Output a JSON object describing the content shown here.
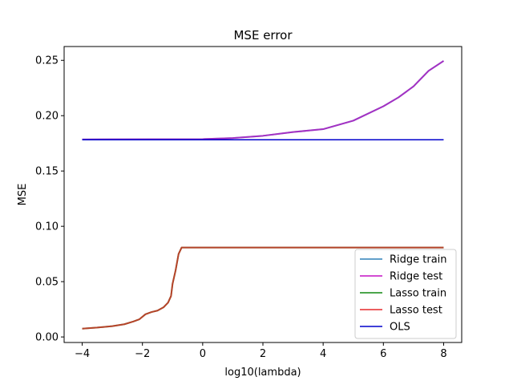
{
  "chart_data": {
    "type": "line",
    "title": "MSE error",
    "xlabel": "log10(lambda)",
    "ylabel": "MSE",
    "xlim": [
      -4.6,
      8.6
    ],
    "ylim": [
      -0.005,
      0.2625
    ],
    "xticks": [
      -4,
      -2,
      0,
      2,
      4,
      6,
      8
    ],
    "xtick_labels": [
      "−4",
      "−2",
      "0",
      "2",
      "4",
      "6",
      "8"
    ],
    "yticks": [
      0.0,
      0.05,
      0.1,
      0.15,
      0.2,
      0.25
    ],
    "ytick_labels": [
      "0.00",
      "0.05",
      "0.10",
      "0.15",
      "0.20",
      "0.25"
    ],
    "grid": false,
    "legend_position": "lower-right",
    "series": [
      {
        "name": "Ridge train",
        "color": "#1f77b4",
        "alpha": 0.7,
        "x": [
          -4,
          0,
          1,
          2,
          3,
          4,
          5,
          6,
          6.5,
          7,
          7.5,
          8
        ],
        "y": [
          0.1785,
          0.1788,
          0.1798,
          0.1818,
          0.1852,
          0.1878,
          0.1955,
          0.2085,
          0.2165,
          0.2265,
          0.2405,
          0.2495
        ]
      },
      {
        "name": "Ridge test",
        "color": "#c000c0",
        "alpha": 0.7,
        "x": [
          -4,
          0,
          1,
          2,
          3,
          4,
          5,
          6,
          6.5,
          7,
          7.5,
          8
        ],
        "y": [
          0.1785,
          0.1788,
          0.1798,
          0.1818,
          0.1852,
          0.1878,
          0.1955,
          0.2085,
          0.2165,
          0.2265,
          0.2405,
          0.2495
        ]
      },
      {
        "name": "Lasso train",
        "color": "#008000",
        "alpha": 0.7,
        "x": [
          -4,
          -3.5,
          -3,
          -2.6,
          -2.3,
          -2.1,
          -1.9,
          -1.7,
          -1.5,
          -1.3,
          -1.15,
          -1.05,
          -1.0,
          -0.9,
          -0.8,
          -0.7,
          0,
          2,
          4,
          6,
          8
        ],
        "y": [
          0.0075,
          0.0085,
          0.0098,
          0.0115,
          0.014,
          0.016,
          0.0205,
          0.0225,
          0.0238,
          0.0268,
          0.031,
          0.037,
          0.048,
          0.06,
          0.075,
          0.0808,
          0.0808,
          0.0808,
          0.0808,
          0.0808,
          0.0808
        ]
      },
      {
        "name": "Lasso test",
        "color": "#e41a1c",
        "alpha": 0.7,
        "x": [
          -4,
          -3.5,
          -3,
          -2.6,
          -2.3,
          -2.1,
          -1.9,
          -1.7,
          -1.5,
          -1.3,
          -1.15,
          -1.05,
          -1.0,
          -0.9,
          -0.8,
          -0.7,
          0,
          2,
          4,
          6,
          8
        ],
        "y": [
          0.0075,
          0.0085,
          0.0098,
          0.0115,
          0.014,
          0.016,
          0.0205,
          0.0225,
          0.0238,
          0.0268,
          0.031,
          0.037,
          0.048,
          0.06,
          0.075,
          0.0808,
          0.0808,
          0.0808,
          0.0808,
          0.0808,
          0.0808
        ]
      },
      {
        "name": "OLS",
        "color": "#0000cc",
        "alpha": 1.0,
        "x": [
          -4,
          8
        ],
        "y": [
          0.1782,
          0.1782
        ]
      }
    ]
  }
}
